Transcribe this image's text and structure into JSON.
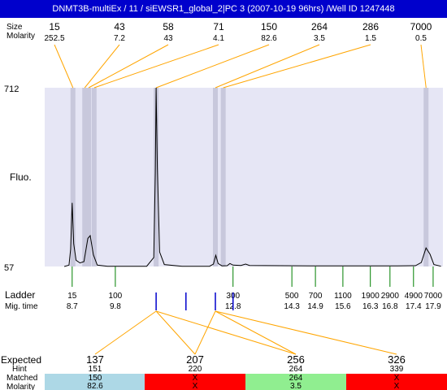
{
  "title": "DNMT3B-multiEx / 11 / siEWSR1_global_2|PC 3 (2007-10-19 96hrs) /Well ID 1247448",
  "colors": {
    "title_bg": "#0000cc",
    "plot_bg": "#e6e6f5",
    "band": "#c8c8dc",
    "connector": "#ffa500",
    "ladder_tick": "#008000",
    "peak_tick": "#0000cc",
    "trace": "#000000",
    "red": "#ff0000",
    "green": "#90ee90",
    "blue": "#add8e6"
  },
  "header": {
    "label_size": "Size",
    "label_molarity": "Molarity",
    "peaks": [
      {
        "size": "15",
        "molarity": "252.5"
      },
      {
        "size": "43",
        "molarity": "7.2"
      },
      {
        "size": "58",
        "molarity": "43"
      },
      {
        "size": "71",
        "molarity": "4.1"
      },
      {
        "size": "150",
        "molarity": "82.6"
      },
      {
        "size": "264",
        "molarity": "3.5"
      },
      {
        "size": "286",
        "molarity": "1.5"
      },
      {
        "size": "7000",
        "molarity": "0.5"
      }
    ]
  },
  "chart_data": {
    "type": "line",
    "ylabel": "Fluo.",
    "ylim": [
      57,
      712
    ],
    "y_ticks": [
      "712",
      "57"
    ],
    "x_unit": "migration time",
    "trace": [
      {
        "t": 8.5,
        "y": 57
      },
      {
        "t": 8.62,
        "y": 62
      },
      {
        "t": 8.66,
        "y": 120
      },
      {
        "t": 8.7,
        "y": 290
      },
      {
        "t": 8.74,
        "y": 140
      },
      {
        "t": 8.8,
        "y": 80
      },
      {
        "t": 8.9,
        "y": 70
      },
      {
        "t": 9.0,
        "y": 75
      },
      {
        "t": 9.1,
        "y": 160
      },
      {
        "t": 9.16,
        "y": 170
      },
      {
        "t": 9.24,
        "y": 100
      },
      {
        "t": 9.34,
        "y": 62
      },
      {
        "t": 9.6,
        "y": 58
      },
      {
        "t": 10.6,
        "y": 58
      },
      {
        "t": 10.78,
        "y": 90
      },
      {
        "t": 10.82,
        "y": 400
      },
      {
        "t": 10.84,
        "y": 712
      },
      {
        "t": 10.87,
        "y": 420
      },
      {
        "t": 10.93,
        "y": 110
      },
      {
        "t": 11.05,
        "y": 64
      },
      {
        "t": 11.5,
        "y": 58
      },
      {
        "t": 12.2,
        "y": 58
      },
      {
        "t": 12.3,
        "y": 66
      },
      {
        "t": 12.36,
        "y": 98
      },
      {
        "t": 12.42,
        "y": 68
      },
      {
        "t": 12.52,
        "y": 59
      },
      {
        "t": 12.65,
        "y": 60
      },
      {
        "t": 12.72,
        "y": 68
      },
      {
        "t": 12.8,
        "y": 62
      },
      {
        "t": 13.0,
        "y": 61
      },
      {
        "t": 13.12,
        "y": 66
      },
      {
        "t": 13.22,
        "y": 61
      },
      {
        "t": 14.0,
        "y": 60
      },
      {
        "t": 15.0,
        "y": 59
      },
      {
        "t": 16.0,
        "y": 59
      },
      {
        "t": 17.0,
        "y": 59
      },
      {
        "t": 17.45,
        "y": 60
      },
      {
        "t": 17.6,
        "y": 72
      },
      {
        "t": 17.72,
        "y": 125
      },
      {
        "t": 17.82,
        "y": 102
      },
      {
        "t": 17.92,
        "y": 64
      },
      {
        "t": 18.1,
        "y": 58
      }
    ],
    "bands_t": [
      8.72,
      9.02,
      9.12,
      9.26,
      10.84,
      12.35,
      12.55,
      17.72
    ],
    "ladder": [
      {
        "size": "15",
        "time": "8.7",
        "t": 8.7
      },
      {
        "size": "100",
        "time": "9.8",
        "t": 9.8
      },
      {
        "size": "300",
        "time": "12.8",
        "t": 12.8
      },
      {
        "size": "500",
        "time": "14.3",
        "t": 14.3
      },
      {
        "size": "700",
        "time": "14.9",
        "t": 14.9
      },
      {
        "size": "1100",
        "time": "15.6",
        "t": 15.6
      },
      {
        "size": "1900",
        "time": "16.3",
        "t": 16.3
      },
      {
        "size": "2900",
        "time": "16.8",
        "t": 16.8
      },
      {
        "size": "4900",
        "time": "17.4",
        "t": 17.4
      },
      {
        "size": "7000",
        "time": "17.9",
        "t": 17.9
      }
    ],
    "peak_ticks_t": [
      10.84,
      11.6,
      12.35,
      12.8
    ]
  },
  "ladder_labels": {
    "ladder": "Ladder",
    "mig_time": "Mig. time"
  },
  "expected_table": {
    "row_labels": {
      "expected": "Expected",
      "hint": "Hint",
      "matched": "Matched",
      "molarity": "Molarity"
    },
    "columns": [
      {
        "expected": "137",
        "hint": "151",
        "matched": "150",
        "molarity": "82.6",
        "status": "blue",
        "expected_color": "#ff0000"
      },
      {
        "expected": "207",
        "hint": "220",
        "matched": "X",
        "molarity": "X",
        "status": "red",
        "expected_color": "#000000"
      },
      {
        "expected": "256",
        "hint": "264",
        "matched": "264",
        "molarity": "3.5",
        "status": "green",
        "expected_color": "#000000"
      },
      {
        "expected": "326",
        "hint": "339",
        "matched": "X",
        "molarity": "X",
        "status": "red",
        "expected_color": "#000000"
      }
    ]
  }
}
